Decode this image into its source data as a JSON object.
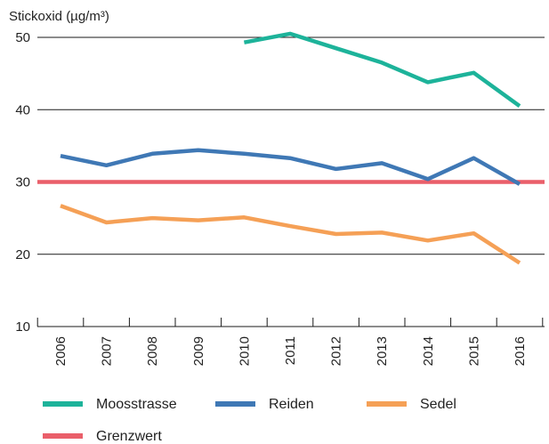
{
  "chart_data": {
    "type": "line",
    "ylabel": "Stickoxid (µg/m³)",
    "ylim": [
      10,
      50
    ],
    "yticks": [
      "10",
      "20",
      "30",
      "40",
      "50"
    ],
    "categories": [
      "2006",
      "2007",
      "2008",
      "2009",
      "2010",
      "2011",
      "2012",
      "2013",
      "2014",
      "2015",
      "2016"
    ],
    "series": [
      {
        "name": "Moosstrasse",
        "color": "#1db39a",
        "values": [
          null,
          null,
          null,
          null,
          49.3,
          50.5,
          48.5,
          46.5,
          43.8,
          45.1,
          40.5
        ]
      },
      {
        "name": "Reiden",
        "color": "#3f78b5",
        "values": [
          33.6,
          32.3,
          33.9,
          34.4,
          33.9,
          33.3,
          31.8,
          32.6,
          30.4,
          33.3,
          29.7
        ]
      },
      {
        "name": "Sedel",
        "color": "#f5a056",
        "values": [
          26.7,
          24.4,
          25.0,
          24.7,
          25.1,
          23.9,
          22.8,
          23.0,
          21.9,
          22.9,
          18.8
        ]
      },
      {
        "name": "Grenzwert",
        "color": "#ea5f6a",
        "values": [
          30,
          30,
          30,
          30,
          30,
          30,
          30,
          30,
          30,
          30,
          30
        ]
      }
    ],
    "grid": true,
    "legend_position": "bottom"
  }
}
